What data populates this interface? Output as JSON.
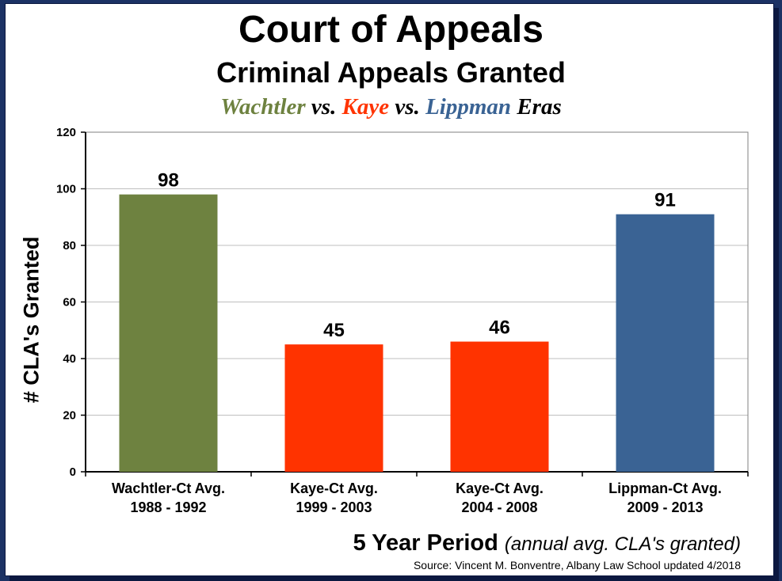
{
  "page": {
    "title": "Court of Appeals",
    "subtitle": "Criminal Appeals Granted",
    "eras": [
      {
        "text": "Wachtler",
        "color": "#6e8240"
      },
      {
        "text": " vs. ",
        "color": "#000000"
      },
      {
        "text": "Kaye",
        "color": "#ff3300"
      },
      {
        "text": " vs. ",
        "color": "#000000"
      },
      {
        "text": "Lippman",
        "color": "#3a6394"
      },
      {
        "text": " Eras",
        "color": "#000000"
      }
    ],
    "xlabel_main": "5 Year Period",
    "xlabel_note": "(annual avg. CLA's granted)",
    "source": "Source: Vincent M. Bonventre, Albany Law School  updated 4/2018"
  },
  "chart_data": {
    "type": "bar",
    "ylabel": "# CLA's Granted",
    "ylim": [
      0,
      120
    ],
    "yticks": [
      0,
      20,
      40,
      60,
      80,
      100,
      120
    ],
    "grid": true,
    "categories": [
      [
        "Wachtler-Ct Avg.",
        "1988 - 1992"
      ],
      [
        "Kaye-Ct Avg.",
        "1999 - 2003"
      ],
      [
        "Kaye-Ct Avg.",
        "2004 - 2008"
      ],
      [
        "Lippman-Ct Avg.",
        "2009 - 2013"
      ]
    ],
    "values": [
      98,
      45,
      46,
      91
    ],
    "colors": [
      "#6e8240",
      "#ff3300",
      "#ff3300",
      "#3a6394"
    ]
  }
}
